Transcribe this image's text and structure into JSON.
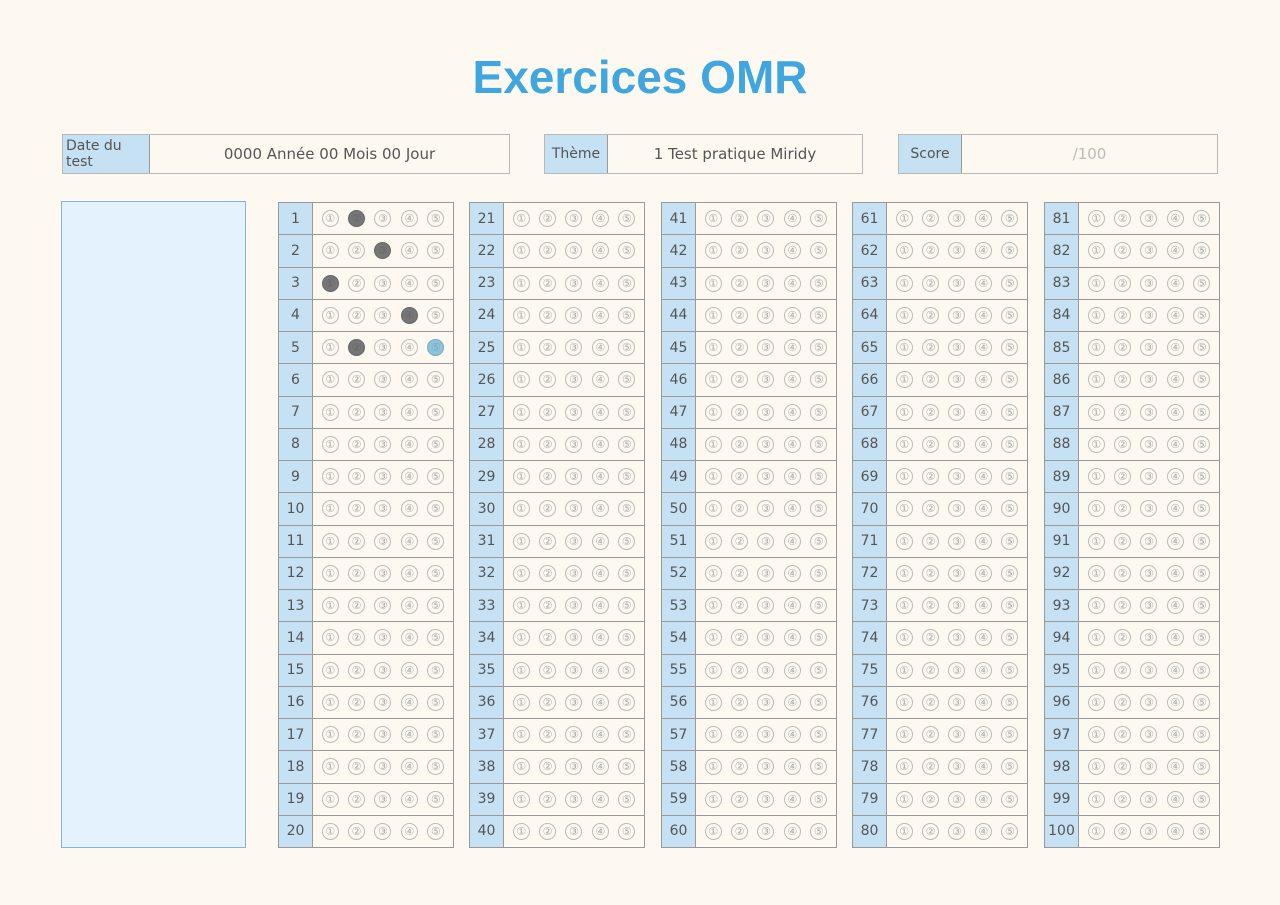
{
  "title": "Exercices OMR",
  "fields": {
    "date": {
      "label": "Date du test",
      "value": "0000 Année 00 Mois 00 Jour"
    },
    "theme": {
      "label": "Thème",
      "value": "1 Test pratique Miridy"
    },
    "score": {
      "label": "Score",
      "value": "/100"
    }
  },
  "questions_count": 100,
  "options": [
    "1",
    "2",
    "3",
    "4",
    "5"
  ],
  "marks": {
    "1": {
      "2": "dark"
    },
    "2": {
      "3": "dark"
    },
    "3": {
      "1": "dark"
    },
    "4": {
      "4": "dark"
    },
    "5": {
      "2": "dark",
      "5": "light"
    }
  },
  "colors": {
    "title": "#3fa6df",
    "label_bg": "#c6e1f4",
    "mark_dark": "#777777",
    "mark_light": "#8fc3dc"
  }
}
